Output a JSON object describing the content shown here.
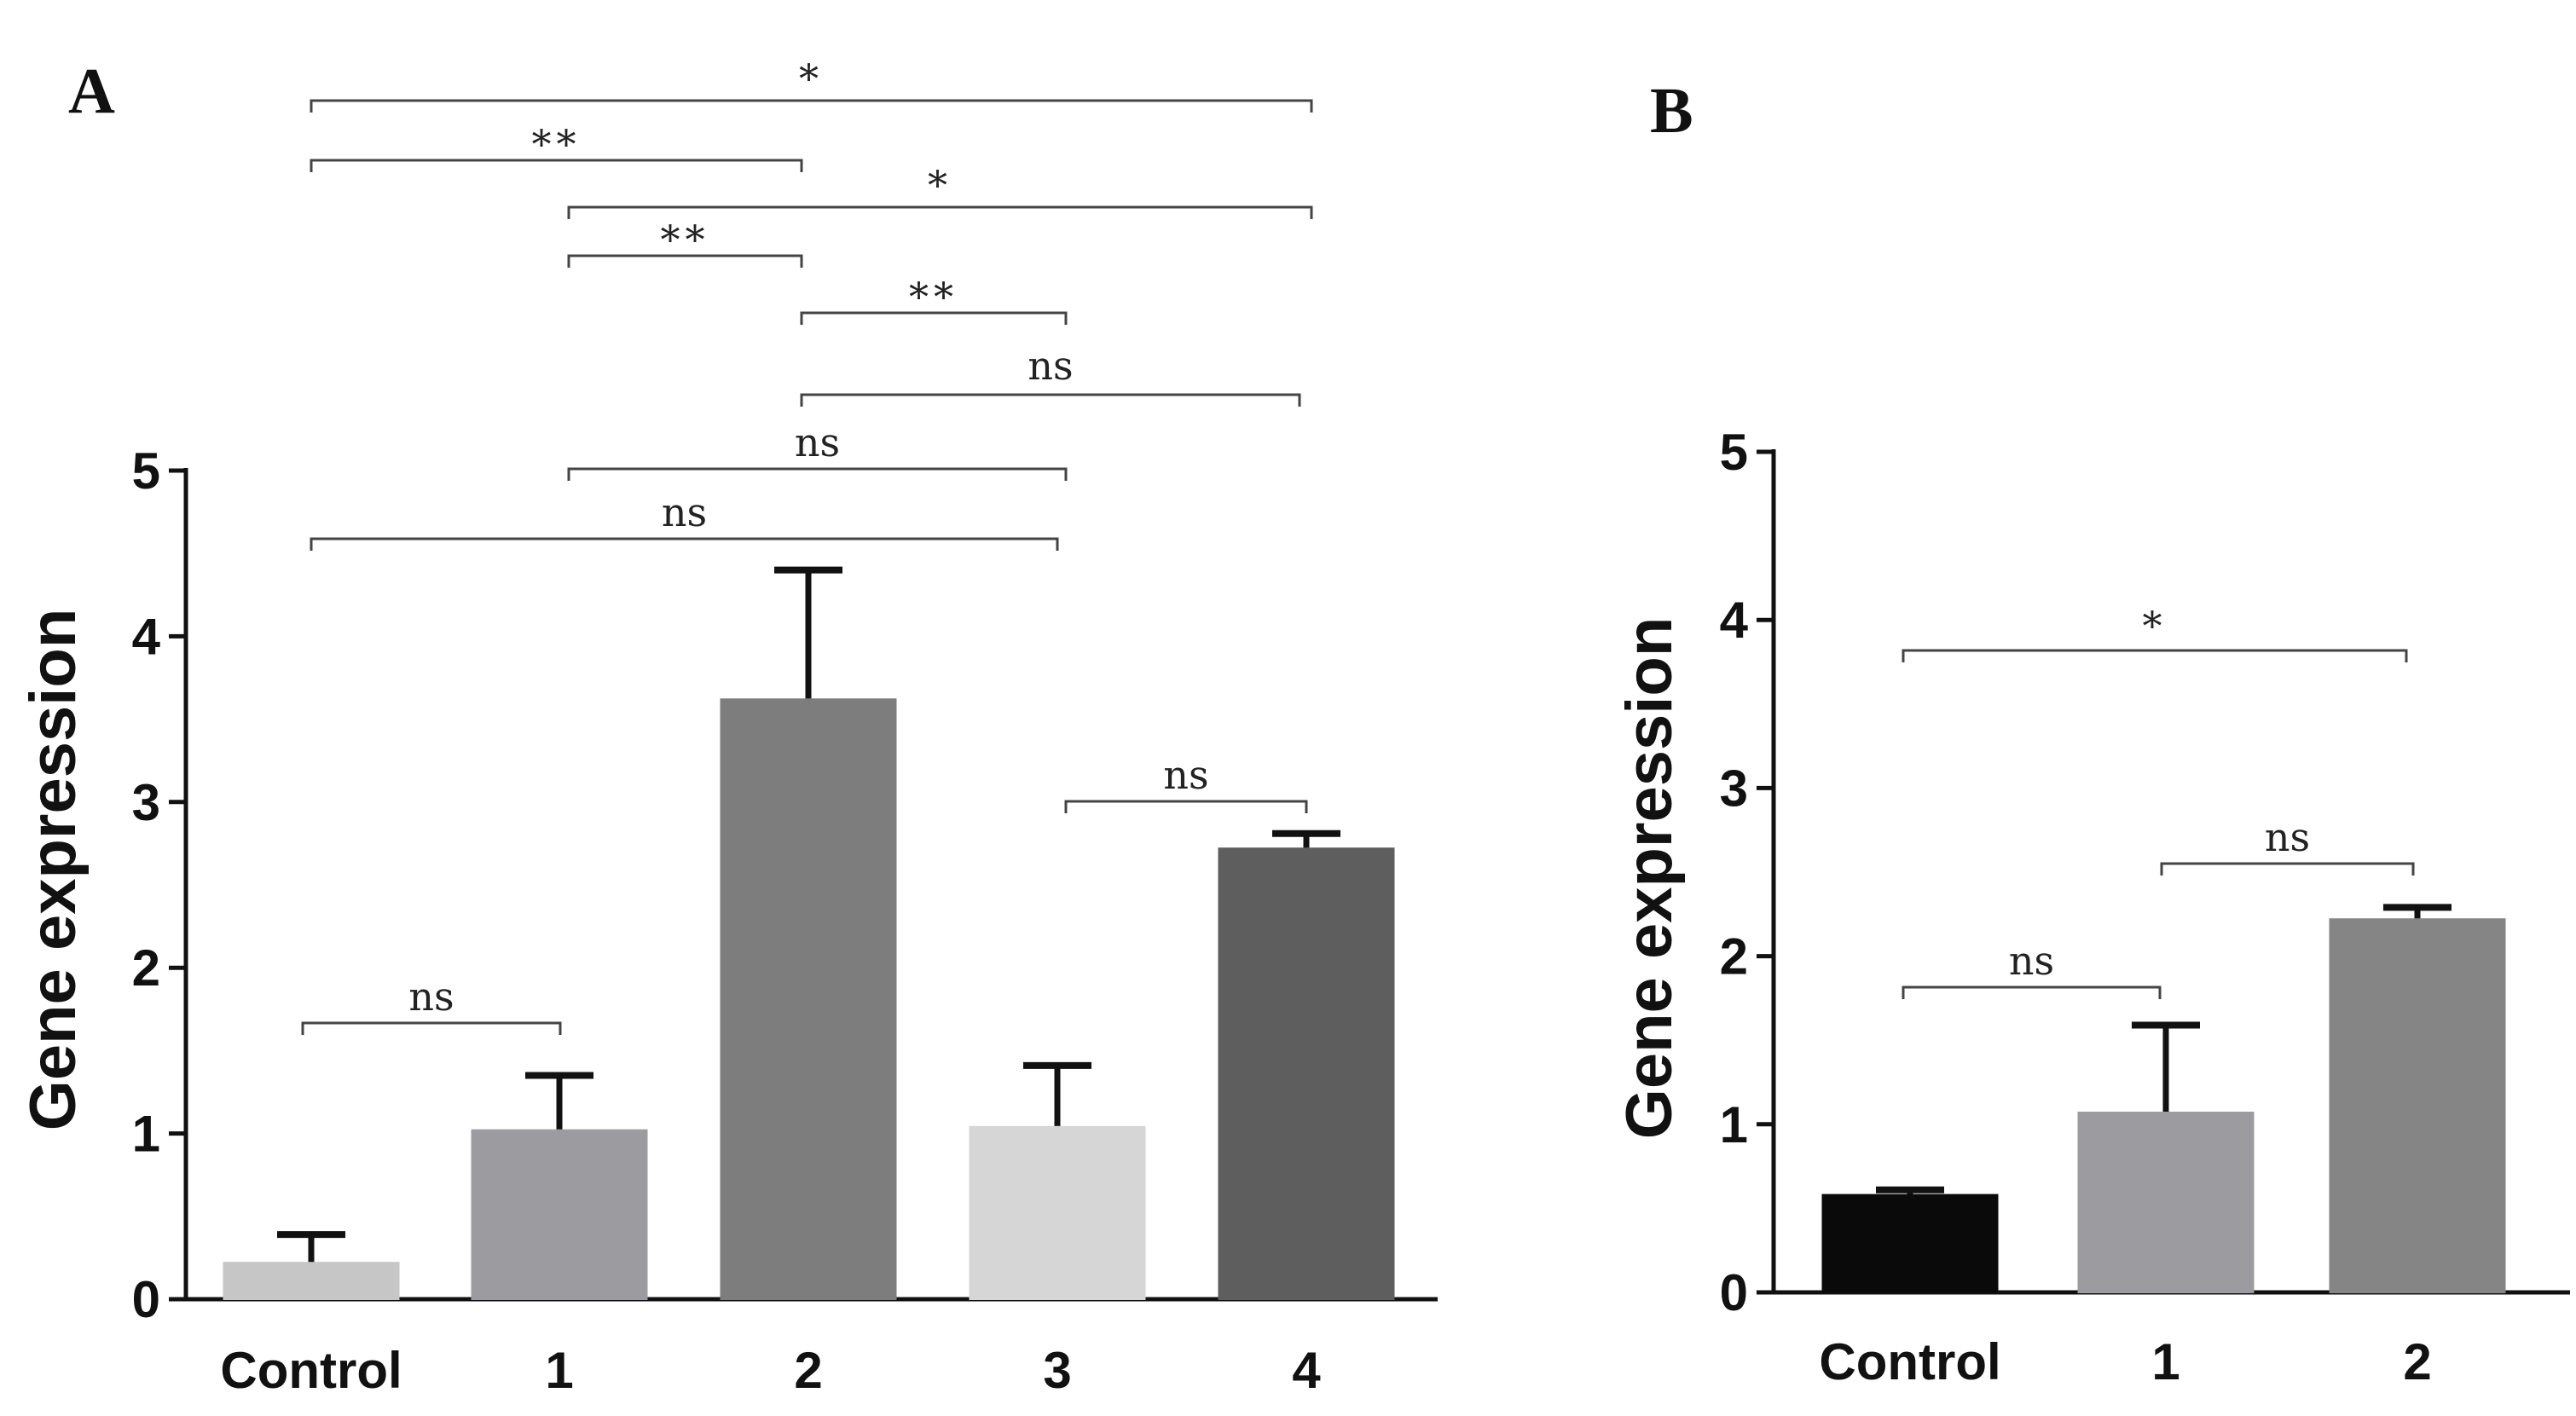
{
  "chart_data": [
    {
      "panel": "A",
      "type": "bar",
      "ylabel": "Gene expression",
      "xlabel": "",
      "ylim": [
        0,
        5
      ],
      "yticks": [
        "0",
        "1",
        "2",
        "3",
        "4",
        "5"
      ],
      "categories": [
        "Control",
        "1",
        "2",
        "3",
        "4"
      ],
      "values": [
        0.22,
        1.02,
        3.62,
        1.04,
        2.72
      ],
      "errors": [
        0.17,
        0.33,
        0.78,
        0.37,
        0.09
      ],
      "colors": [
        "#c6c6c6",
        "#9c9ca0",
        "#7d7d7d",
        "#d6d6d6",
        "#5e5e5e"
      ],
      "comparisons": [
        {
          "from": 0,
          "to": 4,
          "label": "*"
        },
        {
          "from": 0,
          "to": 2,
          "label": "**"
        },
        {
          "from": 1,
          "to": 4,
          "label": "*"
        },
        {
          "from": 1,
          "to": 2,
          "label": "**"
        },
        {
          "from": 2,
          "to": 3,
          "label": "**"
        },
        {
          "from": 2,
          "to": 4,
          "label": "ns"
        },
        {
          "from": 1,
          "to": 3,
          "label": "ns"
        },
        {
          "from": 0,
          "to": 3,
          "label": "ns"
        },
        {
          "from": 3,
          "to": 4,
          "label": "ns"
        },
        {
          "from": 0,
          "to": 1,
          "label": "ns"
        }
      ]
    },
    {
      "panel": "B",
      "type": "bar",
      "ylabel": "Gene expression",
      "xlabel": "",
      "ylim": [
        0,
        5
      ],
      "yticks": [
        "0",
        "1",
        "2",
        "3",
        "4",
        "5"
      ],
      "categories": [
        "Control",
        "1",
        "2"
      ],
      "values": [
        0.58,
        1.07,
        2.22
      ],
      "errors": [
        0.03,
        0.52,
        0.07
      ],
      "colors": [
        "#0a0a0a",
        "#9c9ca0",
        "#858585"
      ],
      "comparisons": [
        {
          "from": 0,
          "to": 2,
          "label": "*"
        },
        {
          "from": 1,
          "to": 2,
          "label": "ns"
        },
        {
          "from": 0,
          "to": 1,
          "label": "ns"
        }
      ]
    }
  ]
}
